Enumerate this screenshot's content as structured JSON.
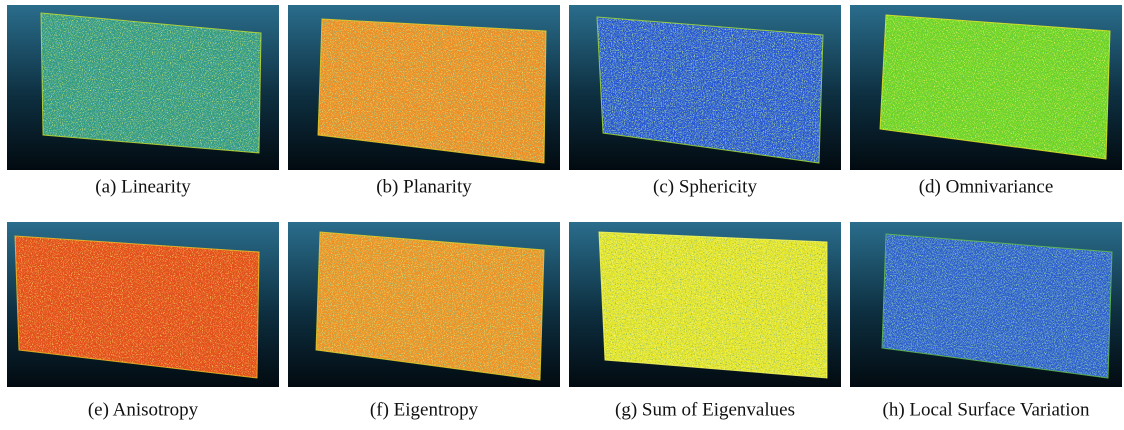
{
  "panels": [
    {
      "caption": "(a) Linearity"
    },
    {
      "caption": "(b) Planarity"
    },
    {
      "caption": "(c) Sphericity"
    },
    {
      "caption": "(d) Omnivariance"
    },
    {
      "caption": "(e) Anisotropy"
    },
    {
      "caption": "(f) Eigentropy"
    },
    {
      "caption": "(g) Sum of Eigenvalues"
    },
    {
      "caption": "(h) Local Surface Variation"
    }
  ]
}
